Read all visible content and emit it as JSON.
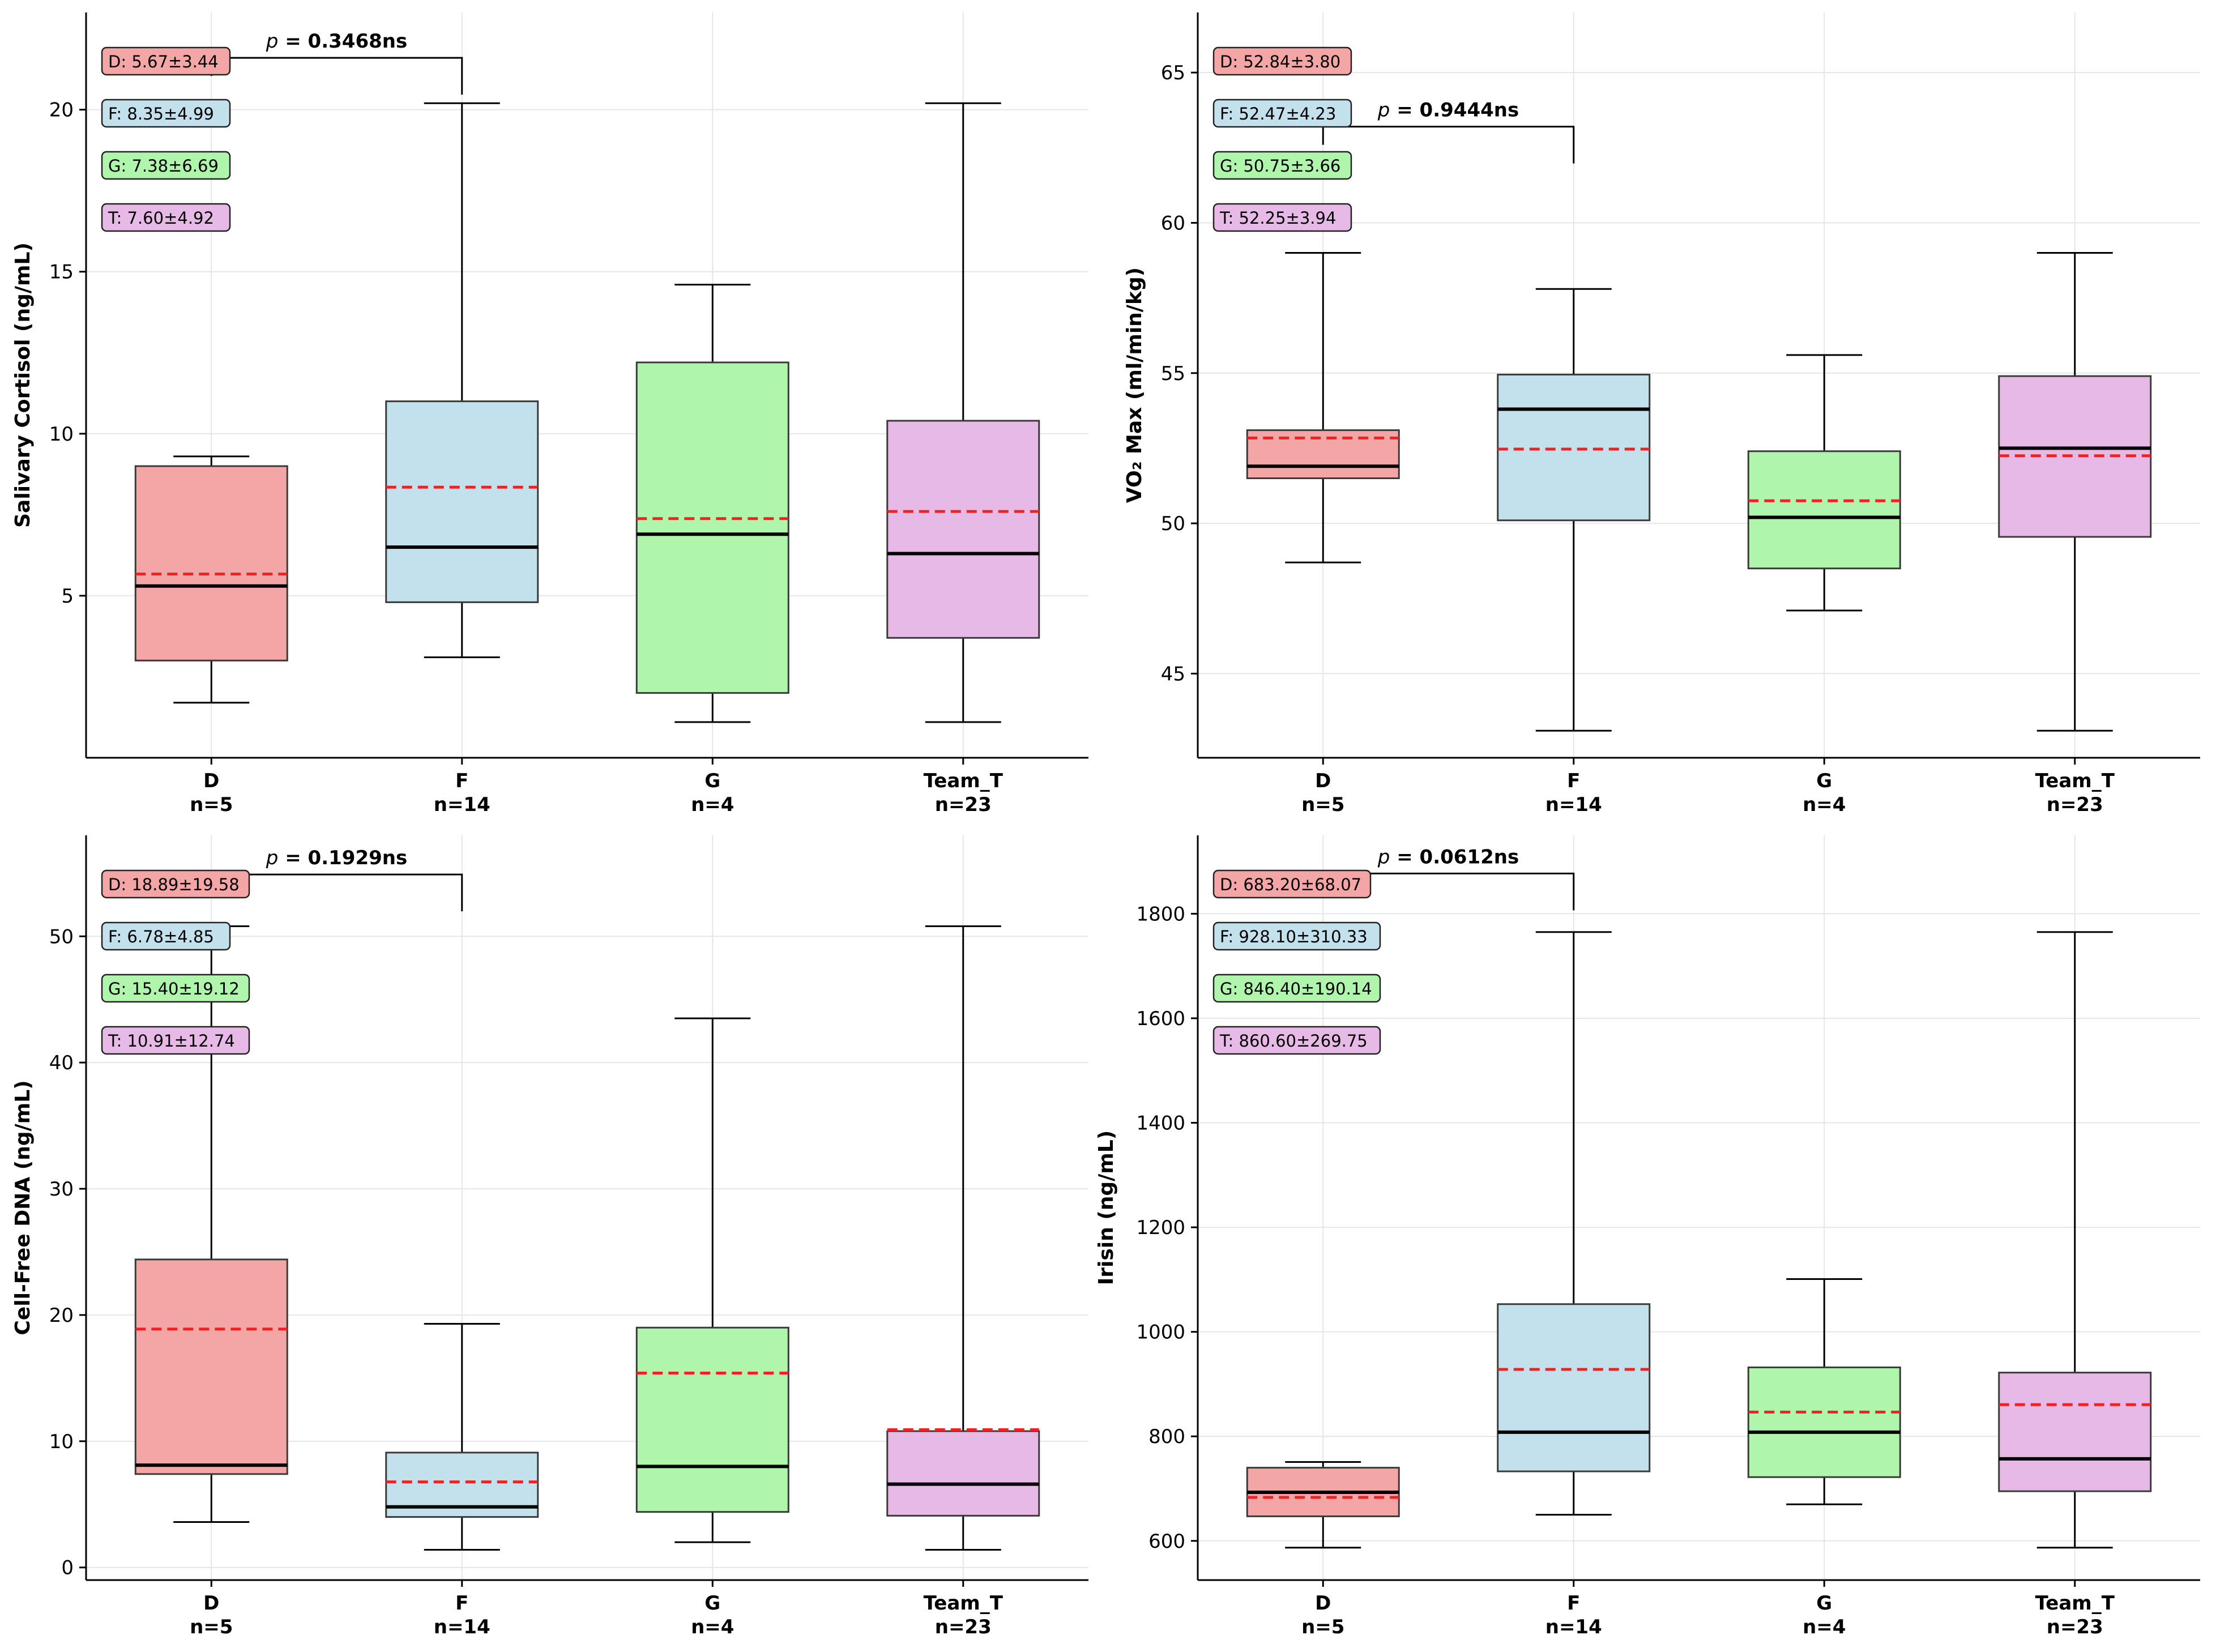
{
  "figure": {
    "layout": "2x2 grid of box plots"
  },
  "colors": {
    "D": "#f4a6a6",
    "F": "#c3e1ec",
    "G": "#b0f5ac",
    "T": "#e7b9e6",
    "D_edge": "#555555",
    "median": "#000000",
    "mean": "#ee2222",
    "grid": "#e6e6e6"
  },
  "chart_data": [
    {
      "type": "box",
      "ylabel": "Salivary Cortisol (ng/mL)",
      "ylim": [
        0,
        23
      ],
      "yticks": [
        5,
        10,
        15,
        20
      ],
      "categories": [
        "D",
        "F",
        "G",
        "Team_T"
      ],
      "n_labels": [
        "n=5",
        "n=14",
        "n=4",
        "n=23"
      ],
      "boxes": [
        {
          "group": "D",
          "whislo": 1.7,
          "q1": 3.0,
          "med": 5.3,
          "q3": 9.0,
          "whishi": 9.3,
          "mean": 5.67
        },
        {
          "group": "F",
          "whislo": 3.1,
          "q1": 4.8,
          "med": 6.5,
          "q3": 11.0,
          "whishi": 20.2,
          "mean": 8.35
        },
        {
          "group": "G",
          "whislo": 1.1,
          "q1": 2.0,
          "med": 6.9,
          "q3": 12.2,
          "whishi": 14.6,
          "mean": 7.38
        },
        {
          "group": "Team_T",
          "whislo": 1.1,
          "q1": 3.7,
          "med": 6.3,
          "q3": 10.4,
          "whishi": 20.2,
          "mean": 7.6
        }
      ],
      "stats": [
        "D: 5.67±3.44",
        "F: 8.35±4.99",
        "G: 7.38±6.69",
        "T: 7.60±4.92"
      ],
      "pvalue": {
        "prefix": "p",
        "text": " = 0.3468ns",
        "from": "D",
        "to": "F",
        "y": 21.6
      }
    },
    {
      "type": "box",
      "ylabel": "VO₂ Max (ml/min/kg)",
      "ylim": [
        42.2,
        67
      ],
      "yticks": [
        45,
        50,
        55,
        60,
        65
      ],
      "categories": [
        "D",
        "F",
        "G",
        "Team_T"
      ],
      "n_labels": [
        "n=5",
        "n=14",
        "n=4",
        "n=23"
      ],
      "boxes": [
        {
          "group": "D",
          "whislo": 48.7,
          "q1": 51.5,
          "med": 51.9,
          "q3": 53.1,
          "whishi": 59.0,
          "mean": 52.84
        },
        {
          "group": "F",
          "whislo": 43.1,
          "q1": 50.1,
          "med": 53.8,
          "q3": 54.95,
          "whishi": 57.8,
          "mean": 52.47
        },
        {
          "group": "G",
          "whislo": 47.1,
          "q1": 48.5,
          "med": 50.2,
          "q3": 52.4,
          "whishi": 55.6,
          "mean": 50.75
        },
        {
          "group": "Team_T",
          "whislo": 43.1,
          "q1": 49.55,
          "med": 52.5,
          "q3": 54.9,
          "whishi": 59.0,
          "mean": 52.25
        }
      ],
      "stats": [
        "D: 52.84±3.80",
        "F: 52.47±4.23",
        "G: 50.75±3.66",
        "T: 52.25±3.94"
      ],
      "pvalue": {
        "prefix": "p",
        "text": " = 0.9444ns",
        "from": "D",
        "to": "F",
        "y": 63.2
      }
    },
    {
      "type": "box",
      "ylabel": "Cell-Free DNA (ng/mL)",
      "ylim": [
        -1,
        58
      ],
      "yticks": [
        0,
        10,
        20,
        30,
        40,
        50
      ],
      "categories": [
        "D",
        "F",
        "G",
        "Team_T"
      ],
      "n_labels": [
        "n=5",
        "n=14",
        "n=4",
        "n=23"
      ],
      "boxes": [
        {
          "group": "D",
          "whislo": 3.6,
          "q1": 7.4,
          "med": 8.1,
          "q3": 24.4,
          "whishi": 50.8,
          "mean": 18.89
        },
        {
          "group": "F",
          "whislo": 1.4,
          "q1": 4.0,
          "med": 4.8,
          "q3": 9.1,
          "whishi": 19.3,
          "mean": 6.78
        },
        {
          "group": "G",
          "whislo": 2.0,
          "q1": 4.4,
          "med": 8.0,
          "q3": 19.0,
          "whishi": 43.5,
          "mean": 15.4
        },
        {
          "group": "Team_T",
          "whislo": 1.4,
          "q1": 4.1,
          "med": 6.6,
          "q3": 10.8,
          "whishi": 50.8,
          "mean": 10.91
        }
      ],
      "stats": [
        "D: 18.89±19.58",
        "F: 6.78±4.85",
        "G: 15.40±19.12",
        "T: 10.91±12.74"
      ],
      "pvalue": {
        "prefix": "p",
        "text": " = 0.1929ns",
        "from": "D",
        "to": "F",
        "y": 54.9
      }
    },
    {
      "type": "box",
      "ylabel": "Irisin (ng/mL)",
      "ylim": [
        525,
        1950
      ],
      "yticks": [
        600,
        800,
        1000,
        1200,
        1400,
        1600,
        1800
      ],
      "categories": [
        "D",
        "F",
        "G",
        "Team_T"
      ],
      "n_labels": [
        "n=5",
        "n=14",
        "n=4",
        "n=23"
      ],
      "boxes": [
        {
          "group": "D",
          "whislo": 587,
          "q1": 647,
          "med": 693,
          "q3": 740,
          "whishi": 751,
          "mean": 683.2
        },
        {
          "group": "F",
          "whislo": 650,
          "q1": 733,
          "med": 808,
          "q3": 1053,
          "whishi": 1765,
          "mean": 928.1
        },
        {
          "group": "G",
          "whislo": 670,
          "q1": 722,
          "med": 808,
          "q3": 932,
          "whishi": 1101,
          "mean": 846.4
        },
        {
          "group": "Team_T",
          "whislo": 587,
          "q1": 695,
          "med": 757,
          "q3": 922,
          "whishi": 1765,
          "mean": 860.6
        }
      ],
      "stats": [
        "D: 683.20±68.07",
        "F: 928.10±310.33",
        "G: 846.40±190.14",
        "T: 860.60±269.75"
      ],
      "pvalue": {
        "prefix": "p",
        "text": " = 0.0612ns",
        "from": "D",
        "to": "F",
        "y": 1877
      }
    }
  ]
}
